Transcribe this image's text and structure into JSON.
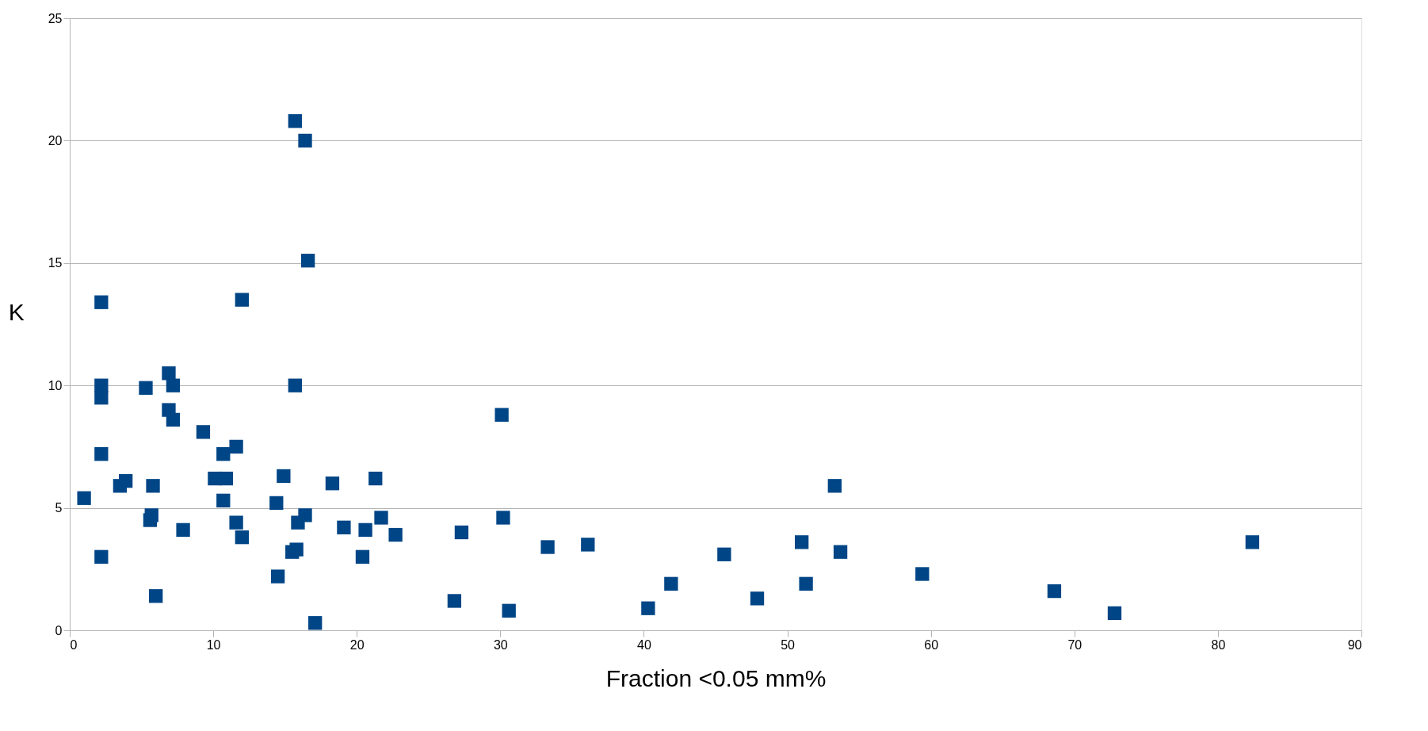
{
  "chart_data": {
    "type": "scatter",
    "xlabel": "Fraction <0.05 mm%",
    "ylabel": "K",
    "marker": "square",
    "grid": "y",
    "xlim": [
      0,
      90
    ],
    "ylim": [
      0,
      25
    ],
    "xticks": [
      0,
      10,
      20,
      30,
      40,
      50,
      60,
      70,
      80,
      90
    ],
    "yticks": [
      0,
      5,
      10,
      15,
      20,
      25
    ],
    "series": [
      {
        "color": "#004586",
        "x": [
          1.0,
          2.2,
          2.2,
          2.2,
          2.2,
          2.2,
          3.5,
          3.9,
          5.3,
          5.8,
          5.6,
          5.7,
          6.0,
          6.9,
          7.2,
          6.9,
          7.2,
          7.9,
          9.3,
          10.1,
          10.7,
          10.9,
          10.7,
          11.6,
          11.6,
          12.0,
          12.0,
          14.4,
          14.5,
          14.9,
          15.7,
          16.4,
          16.6,
          15.7,
          16.4,
          15.9,
          15.5,
          15.8,
          17.1,
          18.3,
          19.1,
          20.4,
          20.6,
          21.3,
          21.7,
          22.7,
          26.8,
          27.3,
          30.1,
          30.2,
          30.6,
          33.3,
          36.1,
          40.3,
          41.9,
          45.6,
          47.9,
          51.0,
          51.3,
          53.3,
          53.7,
          59.4,
          68.6,
          72.8,
          82.4
        ],
        "values": [
          5.4,
          13.4,
          10.0,
          9.5,
          7.2,
          3.0,
          5.9,
          6.1,
          9.9,
          5.9,
          4.5,
          4.7,
          1.4,
          10.5,
          10.0,
          9.0,
          8.6,
          4.1,
          8.1,
          6.2,
          7.2,
          6.2,
          5.3,
          7.5,
          4.4,
          13.5,
          3.8,
          5.2,
          2.2,
          6.3,
          20.8,
          20.0,
          15.1,
          10.0,
          4.7,
          4.4,
          3.2,
          3.3,
          0.3,
          6.0,
          4.2,
          3.0,
          4.1,
          6.2,
          4.6,
          3.9,
          1.2,
          4.0,
          8.8,
          4.6,
          0.8,
          3.4,
          3.5,
          0.9,
          1.9,
          3.1,
          1.3,
          3.6,
          1.9,
          5.9,
          3.2,
          2.3,
          1.6,
          0.7,
          3.6
        ]
      }
    ]
  }
}
